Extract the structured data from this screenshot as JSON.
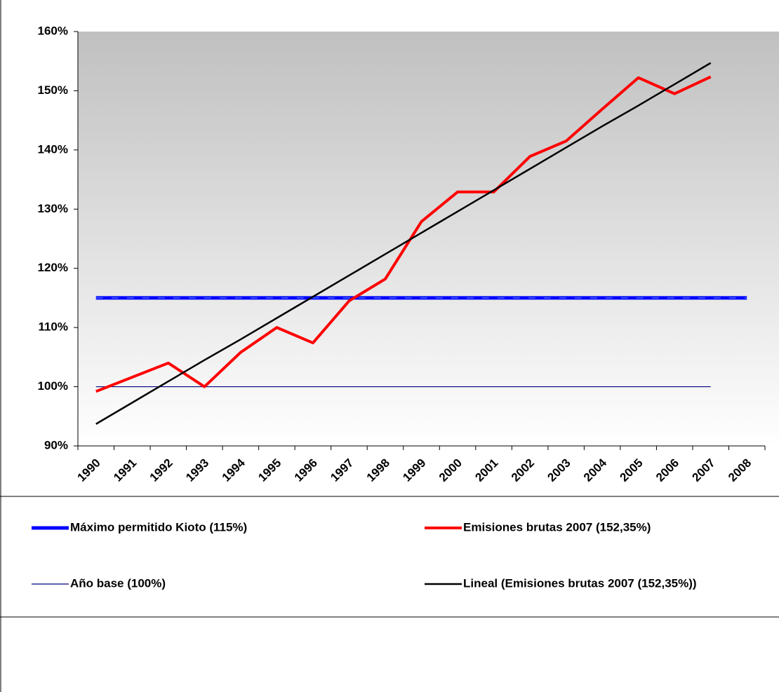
{
  "chart_data": {
    "type": "line",
    "categories": [
      "1990",
      "1991",
      "1992",
      "1993",
      "1994",
      "1995",
      "1996",
      "1997",
      "1998",
      "1999",
      "2000",
      "2001",
      "2002",
      "2003",
      "2004",
      "2005",
      "2006",
      "2007",
      "2008"
    ],
    "ylim": [
      90,
      160
    ],
    "yticks": [
      {
        "value": 90,
        "label": "90%"
      },
      {
        "value": 100,
        "label": "100%"
      },
      {
        "value": 110,
        "label": "110%"
      },
      {
        "value": 120,
        "label": "120%"
      },
      {
        "value": 130,
        "label": "130%"
      },
      {
        "value": 140,
        "label": "140%"
      },
      {
        "value": 150,
        "label": "150%"
      },
      {
        "value": 160,
        "label": "160%"
      }
    ],
    "series": [
      {
        "name": "Máximo permitido Kioto (115%)",
        "color": "#0000ff",
        "values": [
          115,
          115,
          115,
          115,
          115,
          115,
          115,
          115,
          115,
          115,
          115,
          115,
          115,
          115,
          115,
          115,
          115,
          115,
          115
        ]
      },
      {
        "name": "Emisiones brutas 2007 (152,35%)",
        "color": "#ff0000",
        "values": [
          99.2,
          101.6,
          104,
          100,
          105.8,
          110,
          107.4,
          114.5,
          118.2,
          127.9,
          132.9,
          132.9,
          138.9,
          141.5,
          146.9,
          152.2,
          149.5,
          152.35,
          null
        ]
      },
      {
        "name": "Año base (100%)",
        "color": "#000080",
        "values": [
          100,
          100,
          100,
          100,
          100,
          100,
          100,
          100,
          100,
          100,
          100,
          100,
          100,
          100,
          100,
          100,
          100,
          100,
          null
        ]
      },
      {
        "name": "Lineal (Emisiones brutas 2007 (152,35%))",
        "color": "#000000",
        "values": [
          93.7,
          97.3,
          100.9,
          104.5,
          108.0,
          111.6,
          115.2,
          118.8,
          122.4,
          126.0,
          129.6,
          133.2,
          136.8,
          140.4,
          144.0,
          147.5,
          151.1,
          154.7,
          null
        ]
      }
    ]
  }
}
